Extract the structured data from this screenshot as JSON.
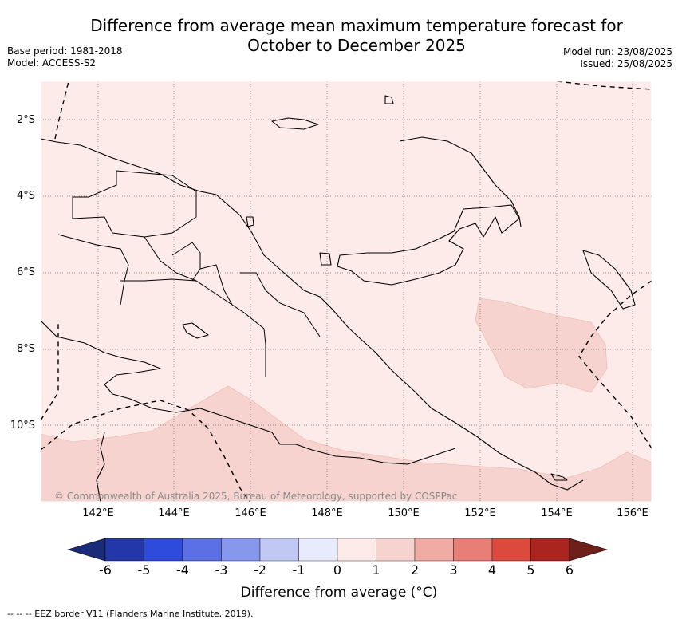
{
  "title": {
    "line1": "Difference from average mean maximum temperature forecast for",
    "line2": "October to December 2025"
  },
  "meta_left": {
    "base_period": "Base period: 1981-2018",
    "model": "Model: ACCESS-S2"
  },
  "meta_right": {
    "model_run": "Model run: 23/08/2025",
    "issued": "Issued: 25/08/2025"
  },
  "map": {
    "lon_range": [
      140.5,
      156.5
    ],
    "lat_range": [
      -12.0,
      -1.0
    ],
    "lon_ticks": [
      "142°E",
      "144°E",
      "146°E",
      "148°E",
      "150°E",
      "152°E",
      "154°E",
      "156°E"
    ],
    "lat_ticks": [
      "2°S",
      "4°S",
      "6°S",
      "8°S",
      "10°S"
    ],
    "background_class": "0 to 1",
    "highlight_class": "1 to 2",
    "credit": "© Commonwealth of Australia 2025, Bureau of Meteorology, supported by COSPPac"
  },
  "colorbar": {
    "ticks": [
      "-6",
      "-5",
      "-4",
      "-3",
      "-2",
      "-1",
      "0",
      "1",
      "2",
      "3",
      "4",
      "5",
      "6"
    ],
    "colors": [
      "#2337a8",
      "#2e4bdc",
      "#5b70e4",
      "#8797eb",
      "#c1c8f4",
      "#e8ebfb",
      "#fcebe8",
      "#f7d3cf",
      "#f0aba4",
      "#e77f76",
      "#dc4a3e",
      "#aa2520"
    ],
    "under_color": "#1a2b7a",
    "over_color": "#6e1f1a",
    "label": "Difference from average (°C)"
  },
  "footer": "-- -- -- EEZ border V11 (Flanders Marine Institute, 2019)."
}
